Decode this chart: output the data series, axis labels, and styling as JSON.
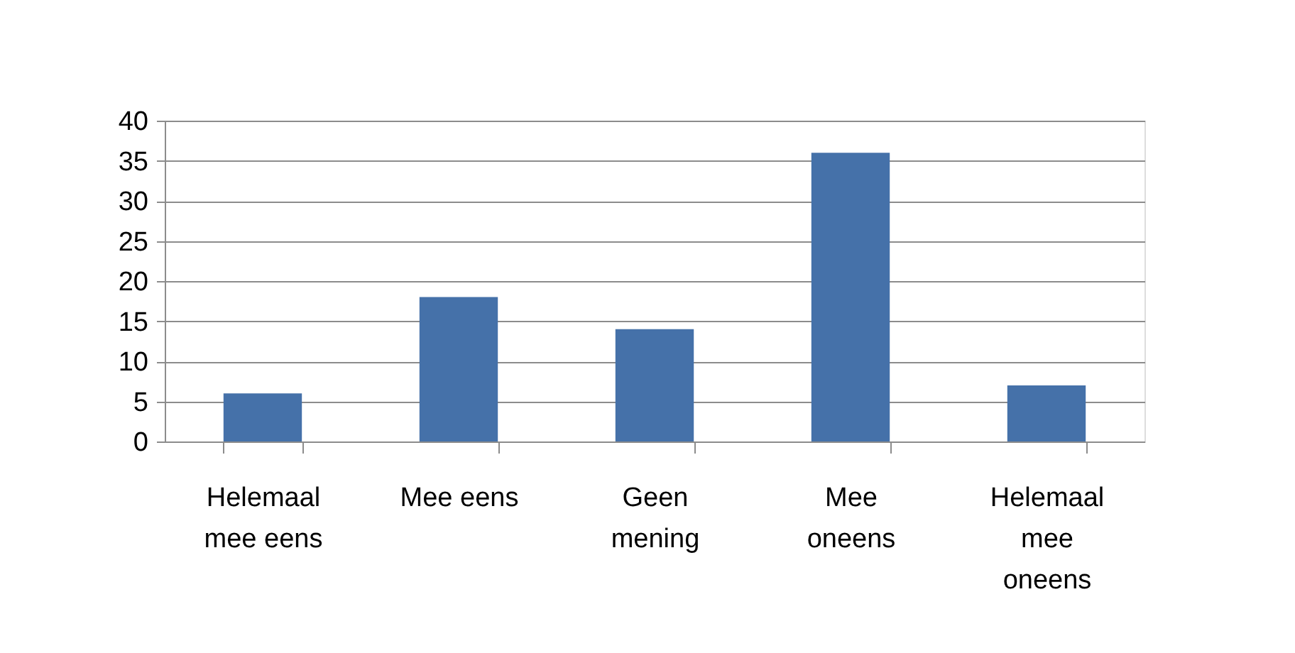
{
  "chart_data": {
    "type": "bar",
    "categories": [
      "Helemaal mee eens",
      "Mee eens",
      "Geen mening",
      "Mee oneens",
      "Helemaal mee oneens"
    ],
    "values": [
      6,
      18,
      14,
      36,
      7
    ],
    "color": "#4571a9",
    "ylim": [
      0,
      40
    ],
    "yticks": [
      0,
      5,
      10,
      15,
      20,
      25,
      30,
      35,
      40
    ],
    "grid": "y"
  }
}
